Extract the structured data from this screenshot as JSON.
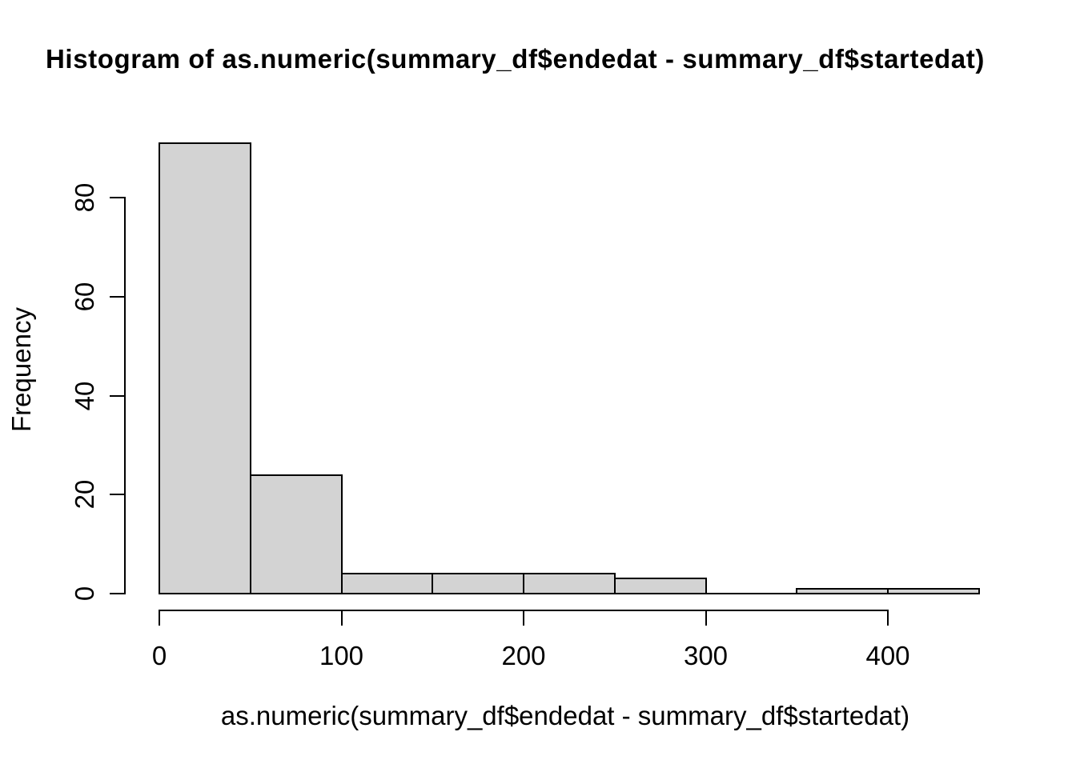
{
  "chart_data": {
    "type": "bar",
    "subtype": "histogram",
    "title": "Histogram of as.numeric(summary_df$endedat - summary_df$startedat)",
    "xlabel": "as.numeric(summary_df$endedat - summary_df$startedat)",
    "ylabel": "Frequency",
    "breaks": [
      0,
      50,
      100,
      150,
      200,
      250,
      300,
      350,
      400,
      450
    ],
    "counts": [
      91,
      24,
      4,
      4,
      4,
      3,
      0,
      1,
      1
    ],
    "x_ticks": [
      0,
      100,
      200,
      300,
      400
    ],
    "y_ticks": [
      0,
      20,
      40,
      60,
      80
    ],
    "xlim": [
      0,
      450
    ],
    "ylim": [
      0,
      91
    ],
    "grid": false,
    "legend": false,
    "bar_fill": "#d3d3d3",
    "bar_border": "#000000",
    "axis_color": "#000000",
    "text_color": "#000000",
    "background": "#ffffff"
  }
}
